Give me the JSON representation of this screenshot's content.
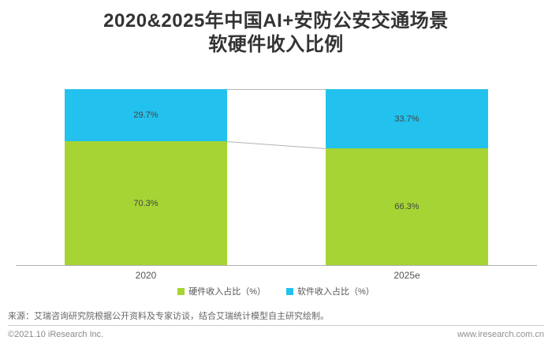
{
  "title": {
    "line1": "2020&2025年中国AI+安防公安交通场景",
    "line2": "软硬件收入比例"
  },
  "chart_data": {
    "type": "bar",
    "stacked": true,
    "title": "2020&2025年中国AI+安防公安交通场景软硬件收入比例",
    "categories": [
      "2020",
      "2025e"
    ],
    "series": [
      {
        "name": "硬件收入占比（%）",
        "color": "#a6d435",
        "values": [
          70.3,
          66.3
        ],
        "labels": [
          "70.3%",
          "66.3%"
        ]
      },
      {
        "name": "软件收入占比（%）",
        "color": "#22c1ee",
        "values": [
          29.7,
          33.7
        ],
        "labels": [
          "29.7%",
          "33.7%"
        ]
      }
    ],
    "xlabel": "",
    "ylabel": "",
    "ylim": [
      0,
      100
    ],
    "grid": false,
    "legend_position": "bottom",
    "value_label_color": "#444444",
    "axis_line_color": "#b0b0b0",
    "connector_line_color": "#b3b3b3"
  },
  "footer": {
    "source": "来源：艾瑞咨询研究院根据公开资料及专家访谈，结合艾瑞统计模型自主研究绘制。",
    "copyright": "©2021.10 iResearch Inc.",
    "website": "www.iresearch.com.cn"
  }
}
